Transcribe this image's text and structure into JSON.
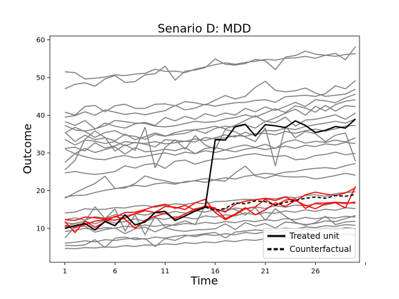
{
  "chart_data": {
    "type": "line",
    "title": "Senario D: MDD",
    "xlabel": "Time",
    "ylabel": "Outcome",
    "xlim": [
      -0.5,
      30.4
    ],
    "ylim": [
      1,
      61
    ],
    "xticks": [
      1,
      6,
      11,
      16,
      21,
      26,
      31
    ],
    "xtick_labels": [
      "1",
      "6",
      "11",
      "16",
      "21",
      "26",
      ""
    ],
    "yticks": [
      10,
      20,
      30,
      40,
      50,
      60
    ],
    "ytick_labels": [
      "10",
      "20",
      "30",
      "40",
      "50",
      "60"
    ],
    "grid": false,
    "legend_position": "lower-right",
    "legend": [
      {
        "label": "Treated unit",
        "style": "solid",
        "color": "#000000"
      },
      {
        "label": "Counterfactual",
        "style": "dashed",
        "color": "#000000"
      }
    ],
    "x": [
      1,
      2,
      3,
      4,
      5,
      6,
      7,
      8,
      9,
      10,
      11,
      12,
      13,
      14,
      15,
      16,
      17,
      18,
      19,
      20,
      21,
      22,
      23,
      24,
      25,
      26,
      27,
      28,
      29,
      30
    ],
    "control_color": "#808080",
    "highlight_color": "#ff0000",
    "series": [
      {
        "role": "control",
        "values": [
          51.5,
          51.3,
          49.6,
          49.8,
          50.1,
          50.7,
          50.5,
          50.9,
          51.1,
          52.2,
          51.6,
          51.7,
          51.3,
          52.2,
          52.8,
          53.4,
          53.9,
          53.5,
          54.0,
          54.3,
          54.8,
          54.6,
          55.1,
          55.2,
          55.6,
          55.1,
          55.9,
          55.6,
          56.1,
          56.3
        ]
      },
      {
        "role": "control",
        "values": [
          47.0,
          48.2,
          48.6,
          47.7,
          49.6,
          50.5,
          48.7,
          48.9,
          50.7,
          51.0,
          53.0,
          49.3,
          51.7,
          52.0,
          52.6,
          54.9,
          53.5,
          53.3,
          53.7,
          54.8,
          54.4,
          52.1,
          55.4,
          55.8,
          57.0,
          56.2,
          55.9,
          56.4,
          54.7,
          58.2
        ]
      },
      {
        "role": "control",
        "values": [
          40.8,
          40.0,
          42.3,
          42.6,
          40.9,
          42.5,
          42.9,
          41.8,
          41.8,
          42.9,
          43.0,
          42.5,
          43.6,
          43.3,
          42.7,
          44.0,
          45.2,
          44.3,
          45.0,
          47.4,
          49.0,
          46.6,
          46.2,
          46.5,
          47.2,
          45.9,
          45.0,
          45.3,
          45.6,
          46.9
        ]
      },
      {
        "role": "control",
        "values": [
          39.5,
          39.9,
          40.9,
          40.0,
          41.4,
          40.8,
          40.2,
          40.6,
          40.1,
          40.7,
          41.2,
          42.6,
          41.4,
          41.9,
          42.9,
          42.4,
          42.9,
          43.3,
          43.4,
          43.9,
          44.1,
          43.4,
          44.9,
          45.1,
          45.3,
          45.0,
          45.7,
          47.8,
          47.0,
          49.2
        ]
      },
      {
        "role": "control",
        "values": [
          38.3,
          37.3,
          38.6,
          36.4,
          37.2,
          38.6,
          38.3,
          37.9,
          37.8,
          37.1,
          36.9,
          37.2,
          37.8,
          38.4,
          38.1,
          38.3,
          39.0,
          39.4,
          40.1,
          39.5,
          40.6,
          41.7,
          40.7,
          42.5,
          41.9,
          40.8,
          42.6,
          41.1,
          42.5,
          42.3
        ]
      },
      {
        "role": "control",
        "values": [
          37.3,
          36.1,
          35.8,
          36.3,
          37.9,
          37.1,
          36.6,
          37.7,
          38.1,
          37.3,
          39.4,
          38.5,
          39.7,
          38.9,
          40.4,
          39.7,
          40.6,
          40.0,
          41.8,
          40.9,
          42.2,
          41.3,
          42.3,
          43.4,
          42.3,
          44.1,
          43.8,
          43.3,
          44.6,
          45.6
        ]
      },
      {
        "role": "control",
        "values": [
          35.3,
          36.8,
          35.7,
          34.1,
          35.4,
          35.9,
          34.7,
          34.4,
          33.6,
          34.9,
          34.4,
          35.4,
          36.0,
          36.2,
          36.5,
          37.1,
          36.4,
          37.3,
          38.6,
          39.9,
          38.3,
          39.3,
          40.5,
          41.6,
          40.0,
          42.4,
          41.1,
          42.8,
          43.7,
          44.1
        ]
      },
      {
        "role": "control",
        "values": [
          35.5,
          33.0,
          34.7,
          33.5,
          34.0,
          33.2,
          35.0,
          33.5,
          34.3,
          35.3,
          34.5,
          34.9,
          35.2,
          36.1,
          35.2,
          36.5,
          37.1,
          36.8,
          37.4,
          36.6,
          38.4,
          38.0,
          39.5,
          37.1,
          38.7,
          38.9,
          39.5,
          40.1,
          38.9,
          40.6
        ]
      },
      {
        "role": "control",
        "values": [
          33.6,
          32.1,
          33.4,
          33.1,
          32.5,
          33.0,
          31.9,
          32.8,
          32.3,
          31.6,
          33.5,
          33.3,
          33.1,
          33.7,
          33.3,
          34.0,
          34.8,
          34.2,
          35.5,
          34.6,
          36.0,
          35.8,
          36.6,
          36.2,
          37.0,
          37.5,
          37.9,
          38.4,
          37.9,
          39.0
        ]
      },
      {
        "role": "control",
        "values": [
          31.2,
          31.5,
          30.5,
          32.7,
          31.3,
          31.9,
          33.0,
          32.7,
          32.5,
          33.0,
          32.4,
          32.7,
          33.1,
          32.9,
          34.1,
          33.7,
          34.0,
          34.6,
          34.4,
          35.1,
          35.2,
          34.8,
          35.7,
          35.2,
          35.9,
          36.3,
          35.8,
          36.4,
          37.1,
          37.3
        ]
      },
      {
        "role": "control",
        "values": [
          31.0,
          29.8,
          31.2,
          30.1,
          30.9,
          31.6,
          29.7,
          31.4,
          30.3,
          30.5,
          31.0,
          30.6,
          31.4,
          29.8,
          31.2,
          31.5,
          30.8,
          31.6,
          32.1,
          31.5,
          32.3,
          31.2,
          32.9,
          33.5,
          32.6,
          33.1,
          32.8,
          33.4,
          32.9,
          34.0
        ]
      },
      {
        "role": "control",
        "values": [
          27.5,
          29.8,
          29.0,
          28.4,
          28.2,
          28.9,
          29.3,
          28.7,
          29.1,
          29.6,
          30.0,
          29.4,
          30.2,
          29.8,
          30.6,
          30.1,
          30.8,
          30.3,
          31.0,
          31.4,
          30.9,
          31.3,
          31.8,
          31.2,
          32.0,
          31.7,
          32.4,
          32.1,
          32.8,
          32.5
        ]
      },
      {
        "role": "control",
        "values": [
          25.5,
          28.0,
          33.6,
          35.8,
          34.1,
          30.5,
          32.2,
          30.7,
          36.8,
          26.1,
          31.5,
          33.5,
          31.0,
          34.6,
          32.1,
          31.0,
          36.2,
          35.6,
          34.2,
          33.0,
          36.6,
          26.6,
          37.0,
          34.0,
          35.7,
          35.1,
          33.0,
          34.7,
          35.3,
          27.8
        ]
      },
      {
        "role": "control",
        "values": [
          24.7,
          25.1,
          24.6,
          24.3,
          24.6,
          25.1,
          26.6,
          26.0,
          26.9,
          27.2,
          25.9,
          27.8,
          28.1,
          27.0,
          27.8,
          28.4,
          28.4,
          28.9,
          29.5,
          29.8,
          29.3,
          29.0,
          29.3,
          28.2,
          28.4,
          29.3,
          29.6,
          30.2,
          29.5,
          29.9
        ]
      },
      {
        "role": "control",
        "values": [
          18.3,
          18.7,
          18.8,
          19.5,
          20.1,
          20.5,
          21.0,
          21.4,
          21.1,
          21.8,
          22.1,
          21.7,
          22.4,
          22.6,
          22.2,
          22.9,
          23.4,
          23.1,
          23.8,
          24.2,
          24.6,
          24.3,
          24.9,
          25.1,
          25.6,
          25.9,
          26.1,
          25.8,
          26.6,
          27.2
        ]
      },
      {
        "role": "control",
        "values": [
          18.0,
          19.4,
          20.7,
          21.9,
          23.8,
          20.6,
          20.7,
          21.9,
          23.9,
          23.1,
          22.6,
          22.0,
          22.2,
          22.7,
          23.2,
          22.8,
          22.5,
          24.7,
          26.5,
          23.9,
          23.3,
          24.1,
          23.7,
          23.6,
          23.7,
          23.1,
          23.5,
          24.0,
          24.6,
          24.1
        ]
      },
      {
        "role": "control",
        "values": [
          14.1,
          14.3,
          15.2,
          15.0,
          15.1,
          15.5,
          15.4,
          15.9,
          16.1,
          15.6,
          16.1,
          16.5,
          16.3,
          16.8,
          16.5,
          17.1,
          17.2,
          17.5,
          17.7,
          17.6,
          18.0,
          17.8,
          18.4,
          18.1,
          18.7,
          18.9,
          18.5,
          19.2,
          19.5,
          19.7
        ]
      },
      {
        "role": "control",
        "values": [
          12.3,
          12.8,
          12.2,
          13.1,
          12.7,
          13.6,
          13.3,
          13.9,
          13.5,
          14.2,
          13.8,
          14.5,
          14.0,
          14.7,
          14.3,
          15.0,
          14.6,
          15.4,
          15.1,
          15.7,
          15.3,
          16.0,
          15.6,
          16.2,
          16.0,
          16.5,
          16.2,
          16.8,
          16.5,
          17.1
        ]
      },
      {
        "role": "control",
        "values": [
          10.4,
          11.3,
          11.9,
          11.2,
          12.1,
          11.4,
          11.8,
          12.5,
          11.9,
          12.7,
          12.4,
          13.1,
          12.9,
          12.5,
          13.3,
          13.0,
          13.6,
          13.3,
          14.1,
          13.6,
          14.2,
          14.0,
          14.6,
          14.3,
          14.9,
          14.5,
          15.1,
          14.8,
          15.5,
          15.2
        ]
      },
      {
        "role": "control",
        "values": [
          11.5,
          11.2,
          11.9,
          15.7,
          12.6,
          15.1,
          9.3,
          13.6,
          8.3,
          13.2,
          10.3,
          11.1,
          12.0,
          11.0,
          16.1,
          14.3,
          15.2,
          15.0,
          13.5,
          15.5,
          12.1,
          15.2,
          13.2,
          11.6,
          10.8,
          11.5,
          13.2,
          11.0,
          11.7,
          11.9
        ]
      },
      {
        "role": "control",
        "values": [
          9.2,
          9.5,
          10.0,
          9.7,
          10.2,
          10.0,
          10.6,
          10.3,
          10.9,
          10.5,
          11.0,
          10.8,
          11.3,
          11.1,
          11.6,
          11.3,
          11.8,
          11.5,
          12.1,
          11.8,
          12.3,
          12.0,
          12.6,
          12.3,
          12.9,
          12.5,
          13.0,
          12.7,
          13.2,
          13.0
        ]
      },
      {
        "role": "control",
        "values": [
          7.5,
          10.4,
          10.6,
          9.0,
          9.7,
          10.1,
          8.6,
          9.9,
          10.3,
          9.1,
          10.2,
          9.5,
          9.2,
          9.6,
          9.7,
          9.9,
          11.2,
          9.7,
          11.5,
          10.6,
          11.3,
          10.1,
          11.7,
          11.4,
          11.0,
          11.3,
          12.0,
          11.8,
          12.6,
          13.4
        ]
      },
      {
        "role": "control",
        "values": [
          6.1,
          6.3,
          6.7,
          6.4,
          7.0,
          6.8,
          7.2,
          7.5,
          7.1,
          7.7,
          7.4,
          7.9,
          8.2,
          7.8,
          8.4,
          8.1,
          8.6,
          8.3,
          8.9,
          8.6,
          9.1,
          8.8,
          9.4,
          9.1,
          9.7,
          9.4,
          10.0,
          9.6,
          10.2,
          9.9
        ]
      },
      {
        "role": "control",
        "values": [
          5.5,
          5.4,
          5.6,
          7.0,
          4.9,
          7.4,
          7.7,
          7.0,
          7.3,
          5.2,
          7.3,
          6.8,
          8.0,
          8.2,
          8.6,
          8.9,
          7.5,
          9.0,
          9.3,
          9.6,
          9.4,
          9.7,
          10.1,
          9.8,
          10.4,
          10.2,
          10.7,
          10.5,
          11.0,
          10.8
        ]
      },
      {
        "role": "control",
        "values": [
          4.7,
          4.6,
          4.9,
          4.8,
          5.1,
          5.0,
          5.4,
          5.2,
          5.6,
          5.5,
          5.9,
          5.7,
          6.2,
          6.0,
          6.4,
          6.2,
          6.7,
          6.5,
          7.0,
          6.8,
          7.3,
          7.1,
          7.6,
          7.4,
          7.9,
          7.7,
          8.2,
          8.0,
          8.5,
          8.3
        ]
      },
      {
        "role": "highlight",
        "values": [
          11.8,
          8.9,
          11.9,
          10.3,
          11.7,
          13.2,
          12.4,
          10.0,
          12.2,
          13.2,
          14.0,
          12.6,
          13.8,
          15.2,
          15.7,
          15.2,
          14.3,
          16.4,
          17.2,
          17.6,
          17.9,
          17.4,
          18.3,
          17.2,
          18.9,
          19.6,
          19.1,
          18.7,
          19.4,
          20.7
        ]
      },
      {
        "role": "highlight",
        "values": [
          12.3,
          12.1,
          13.0,
          12.8,
          12.5,
          13.0,
          14.2,
          14.3,
          15.0,
          15.9,
          16.4,
          15.3,
          16.1,
          14.8,
          16.0,
          15.4,
          12.6,
          13.8,
          15.5,
          13.6,
          14.9,
          16.8,
          15.8,
          17.4,
          16.1,
          15.2,
          16.5,
          16.8,
          15.4,
          21.1
        ]
      },
      {
        "role": "highlight",
        "values": [
          10.8,
          10.2,
          11.0,
          11.9,
          12.3,
          12.2,
          12.8,
          13.9,
          14.7,
          14.2,
          15.8,
          15.6,
          15.0,
          16.8,
          17.7,
          14.2,
          12.3,
          13.6,
          15.2,
          15.7,
          17.7,
          16.0,
          17.5,
          17.8,
          15.3,
          16.7,
          16.7,
          16.9,
          16.8,
          16.7
        ]
      },
      {
        "role": "treated",
        "label": "Treated unit",
        "values": [
          10.0,
          10.7,
          11.3,
          9.6,
          11.8,
          10.7,
          13.6,
          10.9,
          11.7,
          14.2,
          14.5,
          12.1,
          13.3,
          14.6,
          15.6,
          33.5,
          33.4,
          37.0,
          37.6,
          34.5,
          37.5,
          37.2,
          36.7,
          38.5,
          37.3,
          35.4,
          36.0,
          37.0,
          36.6,
          39.0
        ]
      },
      {
        "role": "counterfactual",
        "label": "Counterfactual",
        "values": [
          10.0,
          10.7,
          11.3,
          9.6,
          11.8,
          10.7,
          13.6,
          10.9,
          11.7,
          14.2,
          14.5,
          12.1,
          13.3,
          14.6,
          15.6,
          14.8,
          15.3,
          16.8,
          16.5,
          17.3,
          17.1,
          16.2,
          16.9,
          17.4,
          18.0,
          18.3,
          18.0,
          18.7,
          18.5,
          19.0
        ]
      }
    ]
  }
}
